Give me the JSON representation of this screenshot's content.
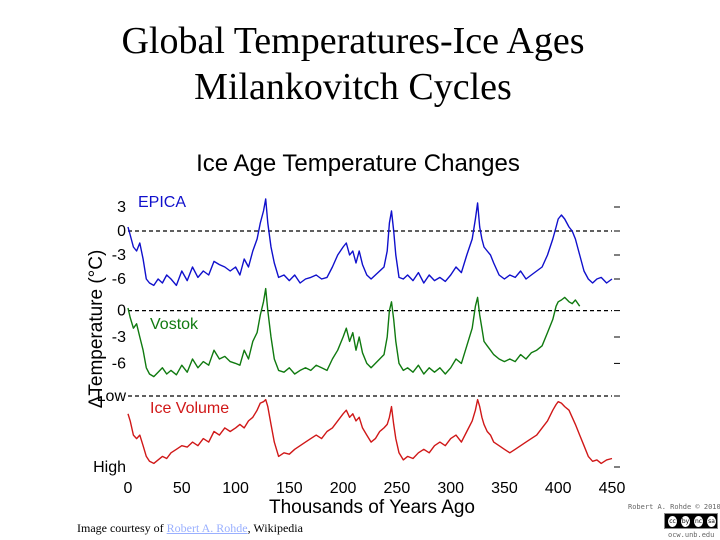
{
  "slide": {
    "title_line1": "Global Temperatures-Ice Ages",
    "title_line2": "Milankovitch Cycles",
    "caption_prefix": "Image courtesy of ",
    "caption_link": "Robert A. Rohde",
    "caption_suffix": ", Wikipedia",
    "credit": "Robert A. Rohde © 2010",
    "cc_icons": [
      "cc",
      "by",
      "nc",
      "sa"
    ],
    "site_url": "ocw.unb.edu"
  },
  "colors": {
    "epica": "#1010cc",
    "vostok": "#107a10",
    "ice": "#d01818",
    "text": "#000000"
  },
  "chart_data": {
    "type": "line",
    "title": "Ice Age Temperature Changes",
    "xlabel": "Thousands of Years Ago",
    "ylabel": "ΔTemperature (°C)",
    "xlim": [
      0,
      450
    ],
    "x_ticks": [
      0,
      50,
      100,
      150,
      200,
      250,
      300,
      350,
      400,
      450
    ],
    "epica": {
      "name": "EPICA",
      "y_ticks": [
        {
          "value": 3,
          "label": "3"
        },
        {
          "value": 0,
          "label": "0"
        },
        {
          "value": -3,
          "label": "-3"
        },
        {
          "value": -6,
          "label": "-6"
        }
      ],
      "ylim": [
        -8,
        5
      ],
      "reference_line": 0,
      "x": [
        0,
        2,
        5,
        8,
        11,
        14,
        17,
        20,
        24,
        28,
        32,
        36,
        40,
        45,
        50,
        55,
        60,
        65,
        70,
        75,
        80,
        85,
        90,
        95,
        100,
        104,
        108,
        112,
        116,
        120,
        123,
        126,
        128,
        130,
        133,
        136,
        140,
        145,
        150,
        155,
        160,
        165,
        170,
        175,
        180,
        185,
        190,
        195,
        200,
        203,
        206,
        209,
        212,
        215,
        218,
        222,
        226,
        230,
        234,
        238,
        241,
        243,
        245,
        247,
        249,
        252,
        256,
        260,
        265,
        270,
        275,
        280,
        285,
        290,
        295,
        300,
        305,
        310,
        315,
        320,
        323,
        325,
        327,
        329,
        331,
        334,
        337,
        340,
        345,
        350,
        355,
        360,
        365,
        370,
        375,
        380,
        385,
        390,
        395,
        398,
        400,
        403,
        406,
        410,
        413,
        416,
        420,
        424,
        428,
        432,
        436,
        440,
        445,
        450
      ],
      "values": [
        0.5,
        -0.5,
        -2,
        -2.5,
        -1.5,
        -3.5,
        -6,
        -6.5,
        -6.8,
        -6,
        -6.5,
        -5.5,
        -6,
        -6.8,
        -5,
        -6.2,
        -4.5,
        -5.8,
        -5,
        -5.5,
        -3.8,
        -4.2,
        -4.5,
        -5,
        -4.5,
        -5.5,
        -3.5,
        -4.5,
        -2.5,
        -1,
        1,
        2.5,
        4,
        1,
        -2,
        -4,
        -5.8,
        -5.5,
        -6.2,
        -5.5,
        -6.5,
        -6,
        -5.8,
        -5.5,
        -6,
        -5.8,
        -4.5,
        -3,
        -2,
        -1.5,
        -3,
        -2.5,
        -4,
        -2.5,
        -4.2,
        -5.5,
        -6,
        -5.5,
        -5,
        -4.5,
        -2.5,
        1,
        2.5,
        0,
        -3,
        -5.8,
        -6,
        -5.5,
        -6.2,
        -5.2,
        -6.5,
        -5.5,
        -6.2,
        -5.8,
        -6.3,
        -5.5,
        -4.5,
        -5.2,
        -3,
        -1,
        1.5,
        3.5,
        0.5,
        -1,
        -2,
        -2.5,
        -3,
        -4,
        -5.5,
        -6,
        -5.5,
        -5.8,
        -5,
        -6,
        -5.5,
        -5,
        -4.5,
        -3,
        -1,
        0.5,
        1.5,
        2,
        1.5,
        0.5,
        0,
        -1,
        -3,
        -5,
        -6,
        -6.5,
        -6,
        -5.8,
        -6.5,
        -6
      ]
    },
    "vostok": {
      "name": "Vostok",
      "y_ticks": [
        {
          "value": 0,
          "label": "0"
        },
        {
          "value": -3,
          "label": "-3"
        },
        {
          "value": -6,
          "label": "-6"
        }
      ],
      "ylim": [
        -8,
        2
      ],
      "reference_line": 0,
      "x": [
        0,
        2,
        5,
        8,
        11,
        14,
        17,
        20,
        24,
        28,
        32,
        36,
        40,
        45,
        50,
        55,
        60,
        65,
        70,
        75,
        80,
        85,
        90,
        95,
        100,
        104,
        108,
        112,
        116,
        120,
        123,
        126,
        128,
        130,
        133,
        136,
        140,
        145,
        150,
        155,
        160,
        165,
        170,
        175,
        180,
        185,
        190,
        195,
        200,
        203,
        206,
        209,
        212,
        215,
        218,
        222,
        226,
        230,
        234,
        238,
        241,
        243,
        245,
        247,
        249,
        252,
        256,
        260,
        265,
        270,
        275,
        280,
        285,
        290,
        295,
        300,
        305,
        310,
        315,
        320,
        323,
        325,
        327,
        329,
        331,
        334,
        337,
        340,
        345,
        350,
        355,
        360,
        365,
        370,
        375,
        380,
        385,
        390,
        395,
        398,
        400,
        403,
        406,
        410,
        413,
        416,
        420
      ],
      "values": [
        0.3,
        -0.8,
        -2,
        -1.5,
        -3,
        -4.5,
        -6.5,
        -7.2,
        -7.5,
        -7,
        -6.5,
        -7.2,
        -6.8,
        -7.3,
        -6.2,
        -7,
        -5.5,
        -6.5,
        -5.8,
        -6.2,
        -4.5,
        -5.5,
        -5.2,
        -5.8,
        -6,
        -6.2,
        -4.5,
        -5.5,
        -3.5,
        -2.5,
        -0.5,
        1,
        2.5,
        0,
        -3,
        -5.5,
        -6.8,
        -7,
        -6.5,
        -7.2,
        -6.8,
        -6.5,
        -6.8,
        -6.2,
        -6.5,
        -6.8,
        -5.5,
        -4.5,
        -3,
        -2,
        -3.5,
        -2.5,
        -4.5,
        -3,
        -4.8,
        -6,
        -6.5,
        -6,
        -5.5,
        -5,
        -3,
        0,
        1,
        -1,
        -3.5,
        -6,
        -6.8,
        -6.5,
        -7,
        -6.2,
        -7.2,
        -6.5,
        -7,
        -6.5,
        -7.2,
        -6.5,
        -5.5,
        -6,
        -4,
        -2,
        0.5,
        1.5,
        -0.5,
        -2,
        -3.5,
        -4,
        -4.5,
        -5,
        -5.5,
        -5.8,
        -5.5,
        -5.8,
        -5,
        -5.5,
        -4.8,
        -4.5,
        -4,
        -2.5,
        -1,
        0.5,
        1,
        1.2,
        1.5,
        1,
        0.8,
        1.2,
        0.5
      ]
    },
    "ice_volume": {
      "name": "Ice Volume",
      "y_ticks": [
        {
          "value": 1,
          "label": "Low"
        },
        {
          "value": 0,
          "label": "High"
        }
      ],
      "ylim": [
        0,
        1
      ],
      "reference_line": 1,
      "x": [
        0,
        2,
        5,
        8,
        11,
        14,
        17,
        20,
        24,
        28,
        32,
        36,
        40,
        45,
        50,
        55,
        60,
        65,
        70,
        75,
        80,
        85,
        90,
        95,
        100,
        104,
        108,
        112,
        116,
        120,
        123,
        126,
        128,
        130,
        133,
        136,
        140,
        145,
        150,
        155,
        160,
        165,
        170,
        175,
        180,
        185,
        190,
        195,
        200,
        203,
        206,
        209,
        212,
        215,
        218,
        222,
        226,
        230,
        234,
        238,
        241,
        243,
        245,
        247,
        249,
        252,
        256,
        260,
        265,
        270,
        275,
        280,
        285,
        290,
        295,
        300,
        305,
        310,
        315,
        320,
        323,
        325,
        327,
        329,
        331,
        334,
        337,
        340,
        345,
        350,
        355,
        360,
        365,
        370,
        375,
        380,
        385,
        390,
        395,
        398,
        400,
        403,
        406,
        410,
        413,
        416,
        420,
        424,
        428,
        432,
        436,
        440,
        445,
        450
      ],
      "values": [
        0.75,
        0.65,
        0.45,
        0.4,
        0.45,
        0.3,
        0.15,
        0.08,
        0.05,
        0.1,
        0.15,
        0.12,
        0.2,
        0.25,
        0.3,
        0.28,
        0.35,
        0.3,
        0.4,
        0.35,
        0.5,
        0.45,
        0.55,
        0.5,
        0.55,
        0.6,
        0.55,
        0.65,
        0.7,
        0.8,
        0.9,
        0.92,
        0.95,
        0.85,
        0.6,
        0.35,
        0.15,
        0.2,
        0.18,
        0.25,
        0.3,
        0.35,
        0.4,
        0.45,
        0.4,
        0.5,
        0.55,
        0.65,
        0.75,
        0.8,
        0.7,
        0.75,
        0.65,
        0.7,
        0.55,
        0.45,
        0.35,
        0.4,
        0.5,
        0.55,
        0.6,
        0.7,
        0.85,
        0.6,
        0.4,
        0.2,
        0.1,
        0.15,
        0.12,
        0.2,
        0.25,
        0.2,
        0.3,
        0.35,
        0.3,
        0.4,
        0.45,
        0.35,
        0.5,
        0.65,
        0.8,
        0.95,
        0.85,
        0.7,
        0.6,
        0.5,
        0.45,
        0.35,
        0.3,
        0.25,
        0.2,
        0.25,
        0.3,
        0.35,
        0.4,
        0.45,
        0.55,
        0.65,
        0.8,
        0.88,
        0.92,
        0.9,
        0.85,
        0.8,
        0.7,
        0.6,
        0.45,
        0.3,
        0.15,
        0.08,
        0.1,
        0.05,
        0.1,
        0.12
      ]
    }
  }
}
